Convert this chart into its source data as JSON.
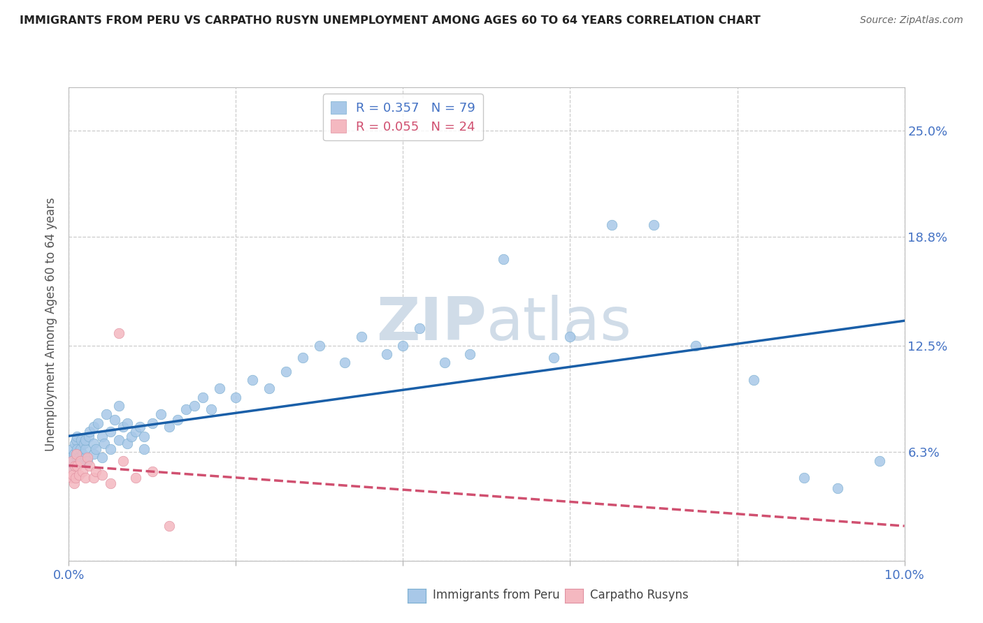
{
  "title": "IMMIGRANTS FROM PERU VS CARPATHO RUSYN UNEMPLOYMENT AMONG AGES 60 TO 64 YEARS CORRELATION CHART",
  "source": "Source: ZipAtlas.com",
  "ylabel": "Unemployment Among Ages 60 to 64 years",
  "xlim": [
    0.0,
    0.1
  ],
  "ylim": [
    0.0,
    0.275
  ],
  "yticks": [
    0.0,
    0.063,
    0.125,
    0.188,
    0.25
  ],
  "ytick_labels": [
    "",
    "6.3%",
    "12.5%",
    "18.8%",
    "25.0%"
  ],
  "xticks": [
    0.0,
    0.02,
    0.04,
    0.06,
    0.08,
    0.1
  ],
  "xtick_labels": [
    "0.0%",
    "",
    "",
    "",
    "",
    "10.0%"
  ],
  "legend_peru_r": "R = 0.357",
  "legend_peru_n": "N = 79",
  "legend_rusyn_r": "R = 0.055",
  "legend_rusyn_n": "N = 24",
  "color_peru": "#a8c8e8",
  "color_rusyn": "#f4b8c0",
  "color_peru_line": "#1a5fa8",
  "color_rusyn_line": "#d05070",
  "watermark_color": "#d0dce8",
  "peru_x": [
    0.0002,
    0.0003,
    0.0004,
    0.0005,
    0.0006,
    0.0007,
    0.0008,
    0.0009,
    0.001,
    0.001,
    0.001,
    0.001,
    0.001,
    0.0012,
    0.0013,
    0.0014,
    0.0015,
    0.0016,
    0.0018,
    0.002,
    0.002,
    0.002,
    0.0022,
    0.0024,
    0.0025,
    0.003,
    0.003,
    0.003,
    0.0032,
    0.0035,
    0.004,
    0.004,
    0.0042,
    0.0045,
    0.005,
    0.005,
    0.0055,
    0.006,
    0.006,
    0.0065,
    0.007,
    0.007,
    0.0075,
    0.008,
    0.0085,
    0.009,
    0.009,
    0.01,
    0.011,
    0.012,
    0.013,
    0.014,
    0.015,
    0.016,
    0.017,
    0.018,
    0.02,
    0.022,
    0.024,
    0.026,
    0.028,
    0.03,
    0.033,
    0.035,
    0.038,
    0.04,
    0.042,
    0.045,
    0.048,
    0.052,
    0.058,
    0.06,
    0.065,
    0.07,
    0.075,
    0.082,
    0.088,
    0.092,
    0.097
  ],
  "peru_y": [
    0.06,
    0.055,
    0.065,
    0.058,
    0.062,
    0.068,
    0.055,
    0.07,
    0.06,
    0.062,
    0.058,
    0.065,
    0.072,
    0.06,
    0.058,
    0.065,
    0.07,
    0.062,
    0.068,
    0.06,
    0.065,
    0.07,
    0.058,
    0.072,
    0.075,
    0.062,
    0.068,
    0.078,
    0.065,
    0.08,
    0.06,
    0.072,
    0.068,
    0.085,
    0.065,
    0.075,
    0.082,
    0.07,
    0.09,
    0.078,
    0.068,
    0.08,
    0.072,
    0.075,
    0.078,
    0.065,
    0.072,
    0.08,
    0.085,
    0.078,
    0.082,
    0.088,
    0.09,
    0.095,
    0.088,
    0.1,
    0.095,
    0.105,
    0.1,
    0.11,
    0.118,
    0.125,
    0.115,
    0.13,
    0.12,
    0.125,
    0.135,
    0.115,
    0.12,
    0.175,
    0.118,
    0.13,
    0.195,
    0.195,
    0.125,
    0.105,
    0.048,
    0.042,
    0.058
  ],
  "rusyn_x": [
    0.0002,
    0.0003,
    0.0004,
    0.0005,
    0.0006,
    0.0007,
    0.0008,
    0.0009,
    0.001,
    0.0012,
    0.0014,
    0.0016,
    0.002,
    0.0022,
    0.0025,
    0.003,
    0.0032,
    0.004,
    0.005,
    0.006,
    0.0065,
    0.008,
    0.01,
    0.012
  ],
  "rusyn_y": [
    0.052,
    0.048,
    0.058,
    0.05,
    0.045,
    0.055,
    0.048,
    0.062,
    0.055,
    0.05,
    0.058,
    0.052,
    0.048,
    0.06,
    0.055,
    0.048,
    0.052,
    0.05,
    0.045,
    0.132,
    0.058,
    0.048,
    0.052,
    0.02
  ],
  "background_color": "#ffffff",
  "grid_color": "#cccccc"
}
